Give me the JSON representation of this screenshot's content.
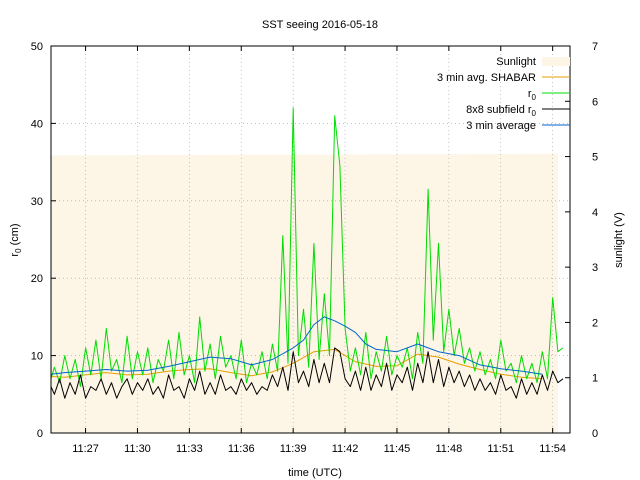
{
  "chart_data": {
    "type": "line",
    "title": "SST seeing 2016-05-18",
    "xlabel": "time (UTC)",
    "ylabel": "r0 (cm)",
    "ylabel_main": "r",
    "ylabel_sub": "0",
    "ylabel_rest": " (cm)",
    "y2label": "sunlight (V)",
    "xlim": [
      11.4167,
      11.9167
    ],
    "ylim": [
      0,
      50
    ],
    "y2lim": [
      0,
      7
    ],
    "grid": true,
    "legend_position": "top-right",
    "x_ticks": [
      {
        "value": 11.45,
        "label": "11:27"
      },
      {
        "value": 11.5,
        "label": "11:30"
      },
      {
        "value": 11.55,
        "label": "11:33"
      },
      {
        "value": 11.6,
        "label": "11:36"
      },
      {
        "value": 11.65,
        "label": "11:39"
      },
      {
        "value": 11.7,
        "label": "11:42"
      },
      {
        "value": 11.75,
        "label": "11:45"
      },
      {
        "value": 11.8,
        "label": "11:48"
      },
      {
        "value": 11.85,
        "label": "11:51"
      },
      {
        "value": 11.9,
        "label": "11:54"
      }
    ],
    "y_ticks": [
      0,
      10,
      20,
      30,
      40,
      50
    ],
    "y2_ticks": [
      0,
      1,
      2,
      3,
      4,
      5,
      6,
      7
    ],
    "series": [
      {
        "name": "Sunlight",
        "kind": "area",
        "axis": "y2",
        "color": "#fdf5e6",
        "x": [
          11.4167,
          11.905
        ],
        "y": [
          5.02,
          5.05
        ]
      },
      {
        "name": "3 min avg. SHABAR",
        "name_main": "3 min avg. SHABAR",
        "kind": "line",
        "axis": "y",
        "color": "#e69f00",
        "x": [
          11.4167,
          11.43,
          11.45,
          11.47,
          11.49,
          11.51,
          11.53,
          11.55,
          11.57,
          11.59,
          11.61,
          11.63,
          11.65,
          11.67,
          11.69,
          11.71,
          11.73,
          11.75,
          11.77,
          11.79,
          11.81,
          11.83,
          11.85,
          11.87,
          11.89
        ],
        "y": [
          7.3,
          7.2,
          7.5,
          7.8,
          7.5,
          7.6,
          8.0,
          8.2,
          8.3,
          7.8,
          7.4,
          7.9,
          9.0,
          10.5,
          10.8,
          9.2,
          8.6,
          8.7,
          10.2,
          9.8,
          8.9,
          8.2,
          7.6,
          7.2,
          7.0
        ]
      },
      {
        "name": "r0",
        "name_main": "r",
        "name_sub": "0",
        "kind": "line",
        "axis": "y",
        "color": "#00dd00",
        "x": [
          11.4167,
          11.42,
          11.425,
          11.43,
          11.435,
          11.44,
          11.445,
          11.45,
          11.455,
          11.46,
          11.465,
          11.47,
          11.475,
          11.48,
          11.485,
          11.49,
          11.495,
          11.5,
          11.505,
          11.51,
          11.515,
          11.52,
          11.525,
          11.53,
          11.535,
          11.54,
          11.545,
          11.55,
          11.555,
          11.56,
          11.565,
          11.57,
          11.575,
          11.58,
          11.585,
          11.59,
          11.595,
          11.6,
          11.605,
          11.61,
          11.615,
          11.62,
          11.625,
          11.63,
          11.635,
          11.64,
          11.645,
          11.65,
          11.655,
          11.66,
          11.665,
          11.67,
          11.675,
          11.68,
          11.685,
          11.69,
          11.695,
          11.7,
          11.705,
          11.71,
          11.715,
          11.72,
          11.725,
          11.73,
          11.735,
          11.74,
          11.745,
          11.75,
          11.755,
          11.76,
          11.765,
          11.77,
          11.775,
          11.78,
          11.785,
          11.79,
          11.795,
          11.8,
          11.805,
          11.81,
          11.815,
          11.82,
          11.825,
          11.83,
          11.835,
          11.84,
          11.845,
          11.85,
          11.855,
          11.86,
          11.865,
          11.87,
          11.875,
          11.88,
          11.885,
          11.89,
          11.895,
          11.9,
          11.905,
          11.91
        ],
        "y": [
          7.0,
          8.5,
          6.5,
          10.0,
          7.0,
          9.5,
          6.0,
          11.0,
          7.5,
          12.0,
          7.0,
          13.5,
          8.0,
          9.5,
          6.5,
          12.5,
          7.0,
          10.5,
          7.5,
          11.0,
          6.5,
          9.5,
          8.0,
          12.0,
          7.0,
          13.0,
          7.5,
          10.0,
          6.5,
          15.0,
          8.0,
          11.5,
          7.0,
          12.5,
          8.5,
          10.0,
          7.0,
          12.0,
          6.5,
          9.0,
          7.5,
          10.5,
          7.0,
          11.5,
          8.0,
          25.5,
          9.0,
          42.0,
          10.0,
          16.0,
          8.5,
          24.5,
          9.5,
          18.0,
          10.0,
          41.0,
          34.5,
          13.5,
          8.0,
          11.0,
          7.5,
          13.0,
          7.0,
          10.5,
          8.0,
          12.5,
          7.5,
          10.0,
          8.5,
          11.0,
          7.0,
          13.0,
          9.0,
          31.5,
          12.0,
          24.5,
          10.5,
          16.0,
          10.0,
          13.5,
          9.0,
          11.0,
          8.0,
          10.5,
          7.5,
          9.5,
          7.0,
          12.0,
          8.0,
          9.0,
          6.5,
          10.0,
          7.0,
          9.0,
          6.5,
          10.5,
          7.0,
          17.5,
          10.5,
          11.0
        ]
      },
      {
        "name": "8x8 subfield r0",
        "name_main": "8x8 subfield r",
        "name_sub": "0",
        "kind": "line",
        "axis": "y",
        "color": "#000000",
        "x": [
          11.4167,
          11.42,
          11.425,
          11.43,
          11.435,
          11.44,
          11.445,
          11.45,
          11.455,
          11.46,
          11.465,
          11.47,
          11.475,
          11.48,
          11.485,
          11.49,
          11.495,
          11.5,
          11.505,
          11.51,
          11.515,
          11.52,
          11.525,
          11.53,
          11.535,
          11.54,
          11.545,
          11.55,
          11.555,
          11.56,
          11.565,
          11.57,
          11.575,
          11.58,
          11.585,
          11.59,
          11.595,
          11.6,
          11.605,
          11.61,
          11.615,
          11.62,
          11.625,
          11.63,
          11.635,
          11.64,
          11.645,
          11.65,
          11.655,
          11.66,
          11.665,
          11.67,
          11.675,
          11.68,
          11.685,
          11.69,
          11.695,
          11.7,
          11.705,
          11.71,
          11.715,
          11.72,
          11.725,
          11.73,
          11.735,
          11.74,
          11.745,
          11.75,
          11.755,
          11.76,
          11.765,
          11.77,
          11.775,
          11.78,
          11.785,
          11.79,
          11.795,
          11.8,
          11.805,
          11.81,
          11.815,
          11.82,
          11.825,
          11.83,
          11.835,
          11.84,
          11.845,
          11.85,
          11.855,
          11.86,
          11.865,
          11.87,
          11.875,
          11.88,
          11.885,
          11.89,
          11.895,
          11.9,
          11.905,
          11.91
        ],
        "y": [
          6.0,
          5.0,
          7.0,
          4.5,
          6.5,
          5.0,
          7.5,
          4.5,
          6.0,
          5.5,
          7.0,
          5.0,
          6.5,
          4.5,
          6.0,
          7.0,
          5.0,
          6.5,
          5.5,
          7.0,
          5.0,
          6.0,
          4.5,
          7.5,
          5.5,
          6.0,
          4.5,
          7.0,
          5.5,
          8.0,
          5.0,
          6.5,
          5.0,
          7.5,
          5.5,
          6.0,
          5.0,
          7.0,
          5.5,
          6.5,
          5.0,
          6.0,
          5.5,
          7.5,
          6.0,
          8.5,
          5.5,
          10.5,
          6.5,
          8.0,
          6.0,
          9.5,
          6.5,
          9.0,
          6.5,
          11.0,
          10.5,
          7.0,
          6.0,
          8.0,
          5.5,
          8.5,
          5.5,
          7.5,
          6.0,
          9.0,
          5.5,
          7.5,
          6.5,
          8.5,
          5.5,
          9.0,
          6.5,
          10.5,
          6.5,
          9.5,
          6.0,
          8.5,
          6.5,
          8.0,
          6.0,
          7.5,
          5.5,
          7.0,
          5.5,
          6.5,
          5.0,
          7.5,
          5.5,
          6.0,
          4.5,
          7.0,
          5.0,
          6.5,
          5.0,
          7.5,
          5.5,
          8.0,
          6.5,
          7.0
        ]
      },
      {
        "name": "3 min average",
        "name_main": "3 min average",
        "kind": "line",
        "axis": "y",
        "color": "#0066cc",
        "x": [
          11.4167,
          11.43,
          11.45,
          11.47,
          11.49,
          11.51,
          11.53,
          11.55,
          11.57,
          11.59,
          11.61,
          11.63,
          11.65,
          11.66,
          11.67,
          11.68,
          11.69,
          11.7,
          11.71,
          11.72,
          11.73,
          11.75,
          11.77,
          11.78,
          11.79,
          11.81,
          11.83,
          11.85,
          11.87,
          11.89
        ],
        "y": [
          7.6,
          7.8,
          8.0,
          8.2,
          8.0,
          8.1,
          8.6,
          9.2,
          9.8,
          9.6,
          8.8,
          9.5,
          11.0,
          12.0,
          14.0,
          15.0,
          14.5,
          13.8,
          13.0,
          11.5,
          10.8,
          10.5,
          11.5,
          11.0,
          10.5,
          10.0,
          8.8,
          8.3,
          8.0,
          7.6
        ]
      }
    ]
  }
}
